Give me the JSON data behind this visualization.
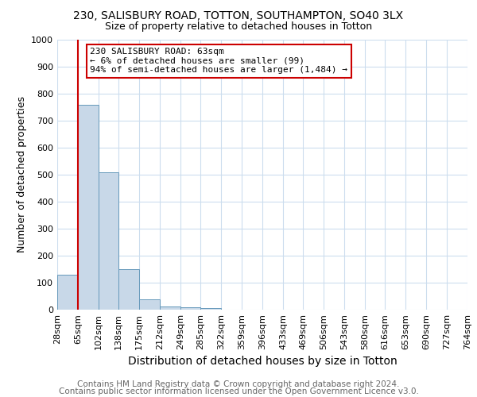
{
  "title1": "230, SALISBURY ROAD, TOTTON, SOUTHAMPTON, SO40 3LX",
  "title2": "Size of property relative to detached houses in Totton",
  "xlabel": "Distribution of detached houses by size in Totton",
  "ylabel": "Number of detached properties",
  "footnote1": "Contains HM Land Registry data © Crown copyright and database right 2024.",
  "footnote2": "Contains public sector information licensed under the Open Government Licence v3.0.",
  "annotation_line1": "230 SALISBURY ROAD: 63sqm",
  "annotation_line2": "← 6% of detached houses are smaller (99)",
  "annotation_line3": "94% of semi-detached houses are larger (1,484) →",
  "bar_edges": [
    28,
    65,
    102,
    138,
    175,
    212,
    249,
    285,
    322,
    359,
    396,
    433,
    469,
    506,
    543,
    580,
    616,
    653,
    690,
    727,
    764
  ],
  "bar_heights": [
    128,
    760,
    510,
    150,
    38,
    12,
    8,
    7,
    0,
    0,
    0,
    0,
    0,
    0,
    0,
    0,
    0,
    0,
    0,
    0
  ],
  "bar_color": "#c8d8e8",
  "bar_edgecolor": "#6699bb",
  "property_line_x": 65,
  "property_line_color": "#cc0000",
  "ylim": [
    0,
    1000
  ],
  "yticks": [
    0,
    100,
    200,
    300,
    400,
    500,
    600,
    700,
    800,
    900,
    1000
  ],
  "background_color": "#ffffff",
  "grid_color": "#ccddee",
  "title1_fontsize": 10,
  "title2_fontsize": 9,
  "xlabel_fontsize": 10,
  "ylabel_fontsize": 9,
  "tick_fontsize": 8,
  "footnote_fontsize": 7.5,
  "annotation_fontsize": 8
}
